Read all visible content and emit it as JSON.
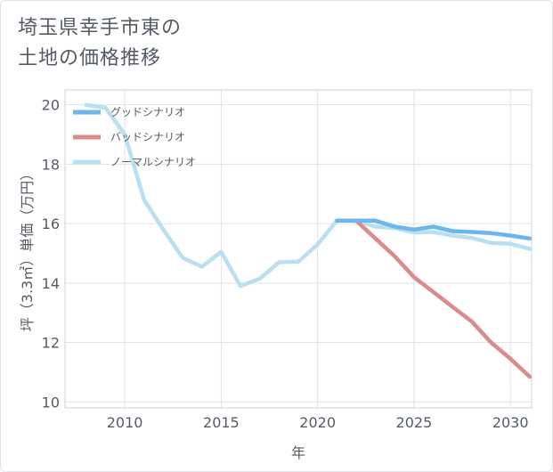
{
  "page": {
    "title_line1": "埼玉県幸手市東の",
    "title_line2": "土地の価格推移"
  },
  "chart_data": {
    "type": "line",
    "title": "埼玉県幸手市東の土地の価格推移",
    "xlabel": "年",
    "ylabel": "坪（3.3㎡）単価（万円）",
    "xlim": [
      2006.9,
      2031.1
    ],
    "ylim": [
      9.8,
      20.5
    ],
    "xticks": [
      2010,
      2015,
      2020,
      2025,
      2030
    ],
    "yticks": [
      10,
      12,
      14,
      16,
      18,
      20
    ],
    "grid": true,
    "legend_position": "top-left",
    "series": [
      {
        "name": "グッドシナリオ",
        "color": "#6cb6ec",
        "x": [
          2021,
          2022,
          2023,
          2024,
          2025,
          2026,
          2027,
          2028,
          2029,
          2030,
          2031
        ],
        "y": [
          16.1,
          16.1,
          16.1,
          15.9,
          15.8,
          15.9,
          15.75,
          15.72,
          15.68,
          15.6,
          15.5
        ]
      },
      {
        "name": "バッドシナリオ",
        "color": "#db8a8e",
        "x": [
          2021,
          2022,
          2023,
          2024,
          2025,
          2026,
          2027,
          2028,
          2029,
          2030,
          2031
        ],
        "y": [
          16.1,
          16.1,
          15.5,
          14.9,
          14.2,
          13.7,
          13.2,
          12.7,
          12.0,
          11.45,
          10.85
        ]
      },
      {
        "name": "ノーマルシナリオ",
        "color": "#b9dff0",
        "x": [
          2008,
          2009,
          2010,
          2011,
          2012,
          2013,
          2014,
          2015,
          2016,
          2017,
          2018,
          2019,
          2020,
          2021,
          2022,
          2023,
          2024,
          2025,
          2026,
          2027,
          2028,
          2029,
          2030,
          2031
        ],
        "y": [
          20.0,
          19.9,
          19.0,
          16.8,
          15.8,
          14.85,
          14.55,
          15.05,
          13.9,
          14.15,
          14.7,
          14.72,
          15.3,
          16.1,
          16.1,
          15.9,
          15.85,
          15.7,
          15.72,
          15.6,
          15.52,
          15.35,
          15.32,
          15.15
        ]
      }
    ]
  }
}
